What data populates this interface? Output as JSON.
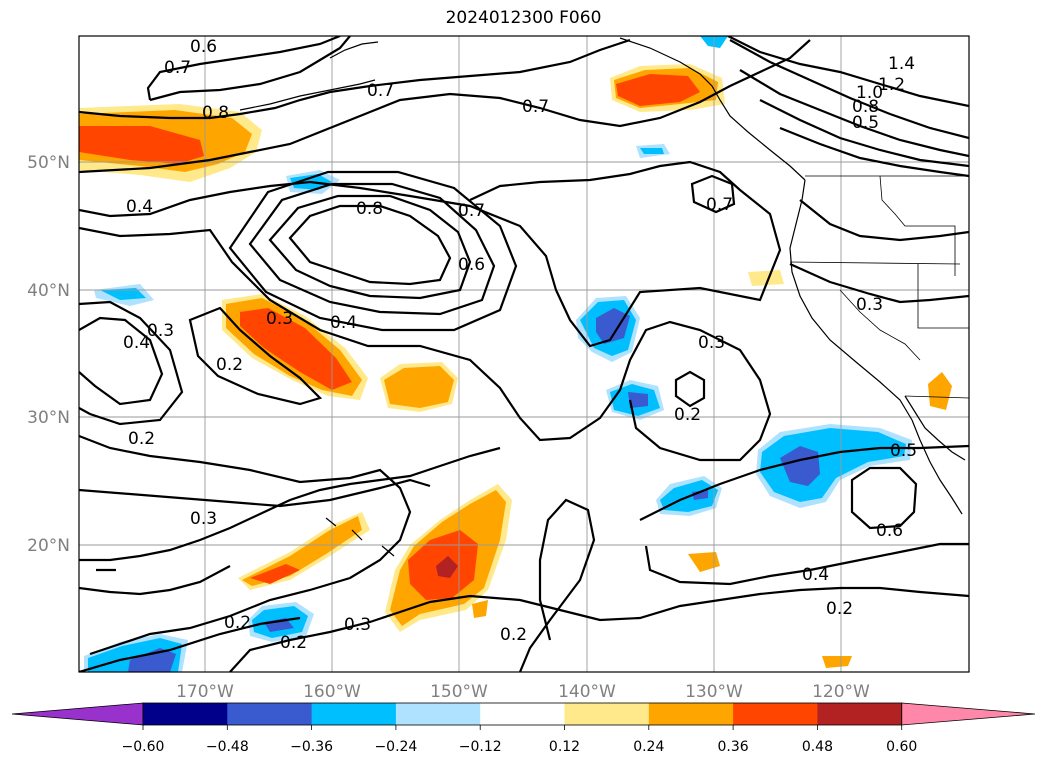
{
  "title": "2024012300 F060",
  "lat_ticks": [
    "50°N",
    "40°N",
    "30°N",
    "20°N"
  ],
  "lon_ticks": [
    "170°W",
    "160°W",
    "150°W",
    "140°W",
    "130°W",
    "120°W"
  ],
  "colorbar": {
    "ticks": [
      "−0.60",
      "−0.48",
      "−0.36",
      "−0.24",
      "−0.12",
      "0.12",
      "0.24",
      "0.36",
      "0.48",
      "0.60"
    ],
    "colors": [
      "#9932cc",
      "#00008b",
      "#3a5bd0",
      "#00bfff",
      "#aee2ff",
      "#ffffff",
      "#ffe98a",
      "#ffa500",
      "#ff4500",
      "#b22222",
      "#ff88aa"
    ]
  },
  "contour_labels": [
    "0.6",
    "0.7",
    "0.8",
    "0.7",
    "0.7",
    "1.4",
    "1.2",
    "1.0",
    "0.8",
    "0.5",
    "0.8",
    "0.7",
    "0.7",
    "0.6",
    "0.4",
    "0.4",
    "0.3",
    "0.3",
    "0.4",
    "0.2",
    "0.3",
    "0.3",
    "0.2",
    "0.2",
    "0.5",
    "0.6",
    "0.4",
    "0.2",
    "0.3",
    "0.2",
    "0.3",
    "0.2",
    "0.2"
  ]
}
